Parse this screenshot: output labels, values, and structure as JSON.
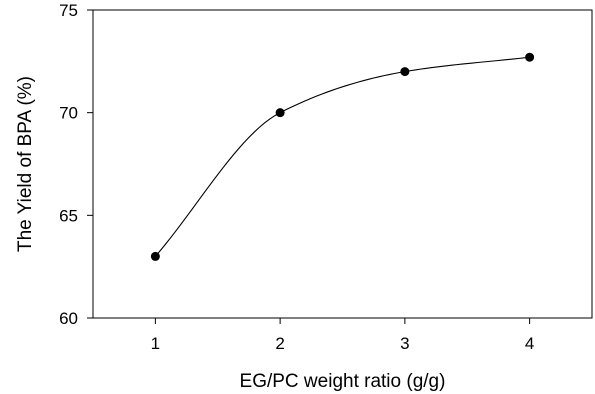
{
  "chart_data": {
    "type": "scatter",
    "title": "",
    "xlabel": "EG/PC weight ratio (g/g)",
    "ylabel": "The Yield of BPA (%)",
    "xlim": [
      0.5,
      4.5
    ],
    "ylim": [
      60,
      75
    ],
    "xticks": [
      1,
      2,
      3,
      4
    ],
    "yticks": [
      60,
      65,
      70,
      75
    ],
    "grid": false,
    "legend": "none",
    "series": [
      {
        "x": [
          1,
          2,
          3,
          4
        ],
        "y": [
          63.0,
          70.0,
          72.0,
          72.7
        ],
        "marker": "filled-circle",
        "color": "#000000",
        "fit_curve": true
      }
    ]
  }
}
